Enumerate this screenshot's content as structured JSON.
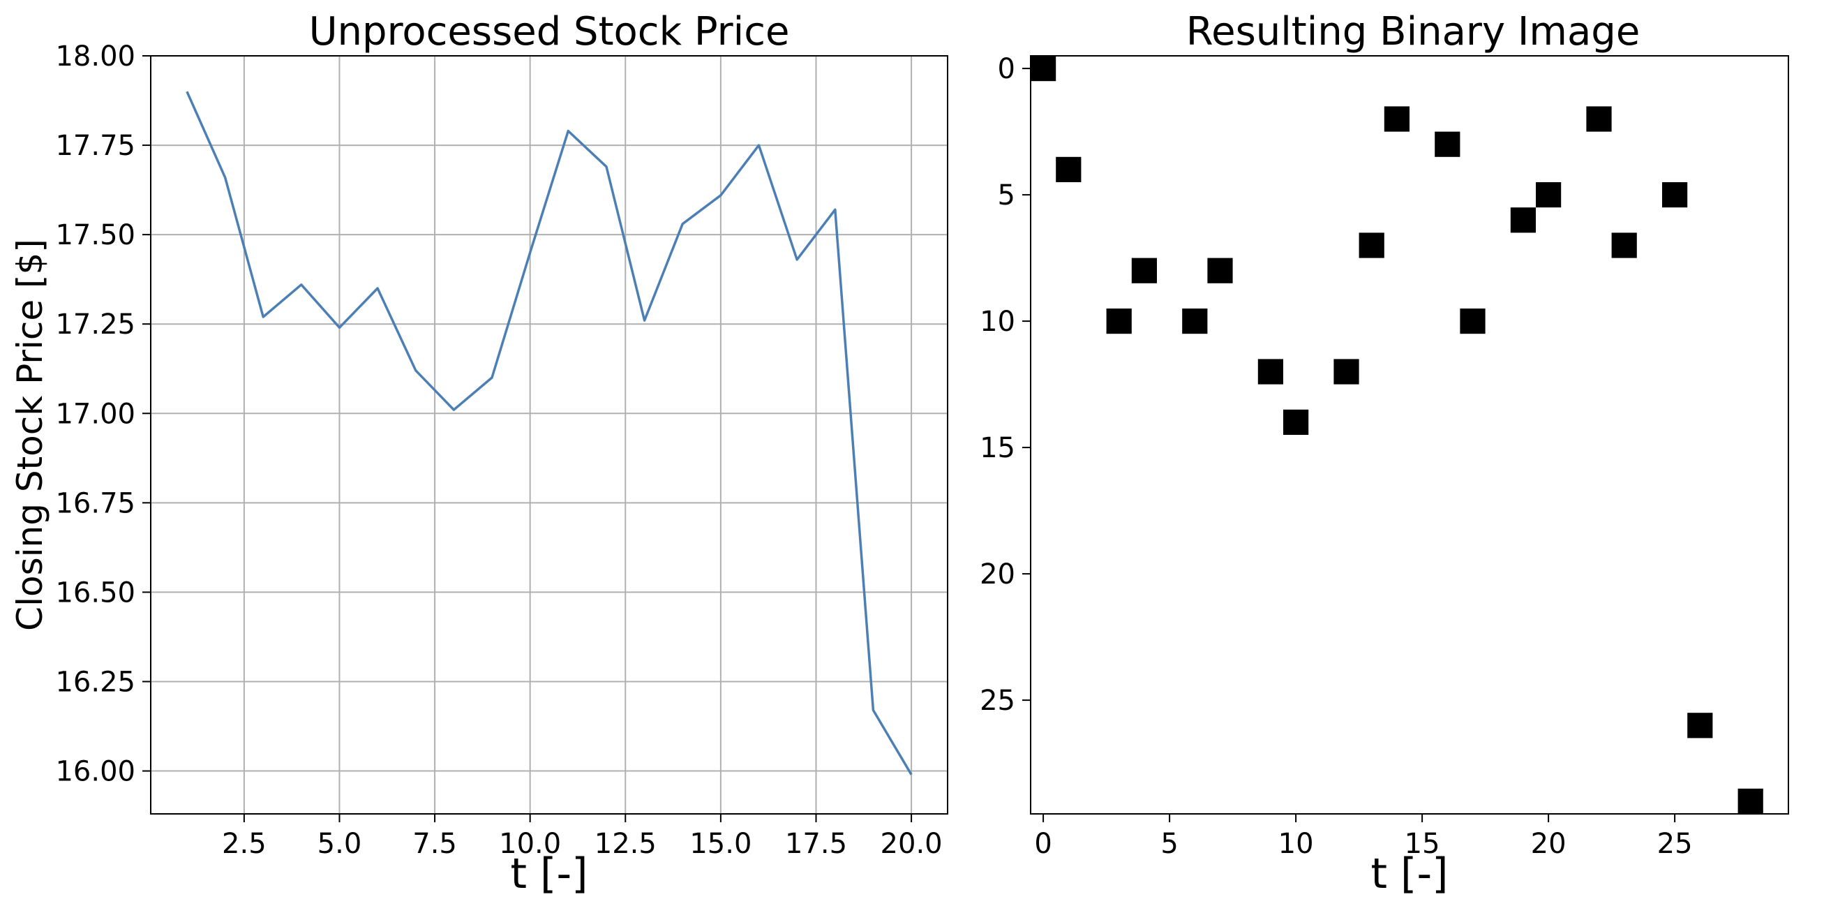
{
  "chart_data": [
    {
      "type": "line",
      "title": "Unprocessed Stock Price",
      "xlabel": "t [-]",
      "ylabel": "Closing Stock Price [$]",
      "xlim": [
        0.05,
        20.95
      ],
      "ylim": [
        15.88,
        18.0
      ],
      "grid": true,
      "line_color": "#4c7fb3",
      "x_ticks": [
        "2.5",
        "5.0",
        "7.5",
        "10.0",
        "12.5",
        "15.0",
        "17.5",
        "20.0"
      ],
      "y_ticks": [
        "16.00",
        "16.25",
        "16.50",
        "16.75",
        "17.00",
        "17.25",
        "17.50",
        "17.75",
        "18.00"
      ],
      "x": [
        1,
        2,
        3,
        4,
        5,
        6,
        7,
        8,
        9,
        10,
        11,
        12,
        13,
        14,
        15,
        16,
        17,
        18,
        19,
        20
      ],
      "series": [
        {
          "values": [
            17.9,
            17.66,
            17.27,
            17.36,
            17.24,
            17.35,
            17.12,
            17.01,
            17.1,
            17.45,
            17.79,
            17.69,
            17.26,
            17.53,
            17.61,
            17.75,
            17.43,
            17.57,
            16.17,
            15.99
          ]
        }
      ]
    },
    {
      "type": "heatmap",
      "title": "Resulting Binary Image",
      "xlabel": "t [-]",
      "ylabel": "",
      "xlim": [
        -0.5,
        29.5
      ],
      "ylim": [
        29.5,
        -0.5
      ],
      "grid": false,
      "fill_color": "#000000",
      "x_ticks": [
        "0",
        "5",
        "10",
        "15",
        "20",
        "25"
      ],
      "y_ticks": [
        "0",
        "5",
        "10",
        "15",
        "20",
        "25"
      ],
      "points": [
        {
          "x": 0,
          "y": 0
        },
        {
          "x": 1,
          "y": 4
        },
        {
          "x": 3,
          "y": 10
        },
        {
          "x": 4,
          "y": 8
        },
        {
          "x": 6,
          "y": 10
        },
        {
          "x": 7,
          "y": 8
        },
        {
          "x": 9,
          "y": 12
        },
        {
          "x": 10,
          "y": 14
        },
        {
          "x": 12,
          "y": 12
        },
        {
          "x": 13,
          "y": 7
        },
        {
          "x": 14,
          "y": 2
        },
        {
          "x": 16,
          "y": 3
        },
        {
          "x": 17,
          "y": 10
        },
        {
          "x": 19,
          "y": 6
        },
        {
          "x": 20,
          "y": 5
        },
        {
          "x": 22,
          "y": 2
        },
        {
          "x": 23,
          "y": 7
        },
        {
          "x": 25,
          "y": 5
        },
        {
          "x": 26,
          "y": 26
        },
        {
          "x": 28,
          "y": 29
        }
      ]
    }
  ]
}
